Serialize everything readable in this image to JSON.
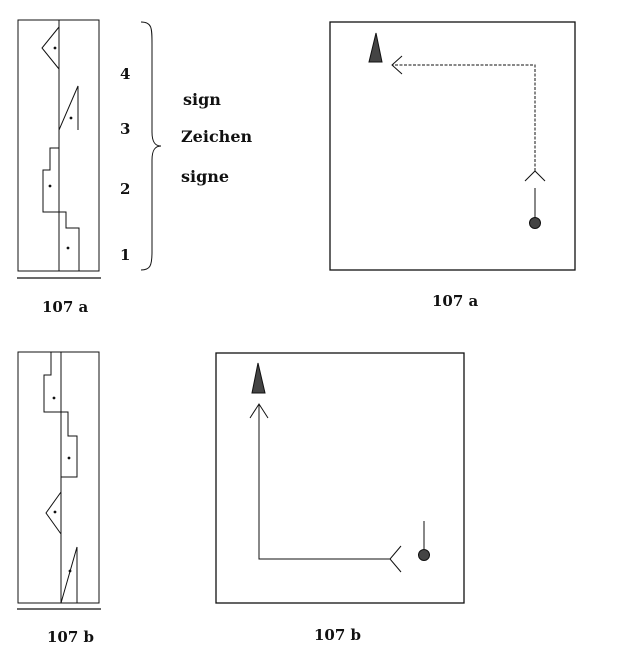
{
  "fig_a": {
    "staff_caption": "107 a",
    "floor_caption": "107 a",
    "count_labels": [
      "4",
      "3",
      "2",
      "1"
    ],
    "sign_words": [
      "sign",
      "Zeichen",
      "signe"
    ]
  },
  "fig_b": {
    "staff_caption": "107 b",
    "floor_caption": "107 b"
  },
  "colors": {
    "ink": "#111111",
    "marker_fill": "#444444"
  }
}
